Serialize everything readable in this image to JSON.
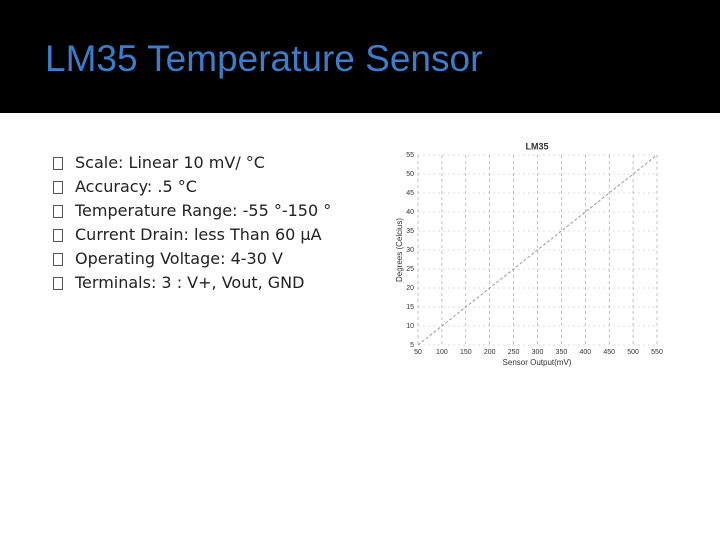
{
  "header": {
    "title": "LM35 Temperature Sensor"
  },
  "bullets": [
    "Scale: Linear 10 mV/ °C",
    "Accuracy: .5 °C",
    "Temperature Range: -55 °-150 °",
    "Current Drain: less Than 60 µA",
    "Operating Voltage: 4-30 V",
    "Terminals: 3 : V+, Vout, GND"
  ],
  "chart_data": {
    "type": "line",
    "title": "LM35",
    "x_label": "Sensor Output(mV)",
    "y_label": "Degrees (Celcius)",
    "x": [
      50,
      550
    ],
    "series": [
      {
        "values": [
          5,
          55
        ],
        "color": "#9a9a9a"
      }
    ],
    "xlim": [
      50,
      550
    ],
    "xticks": [
      50,
      100,
      150,
      200,
      250,
      300,
      350,
      400,
      450,
      500,
      550
    ],
    "ylim": [
      5,
      55
    ],
    "yticks": [
      5,
      10,
      15,
      20,
      25,
      30,
      35,
      40,
      45,
      50,
      55
    ],
    "grid": true
  }
}
